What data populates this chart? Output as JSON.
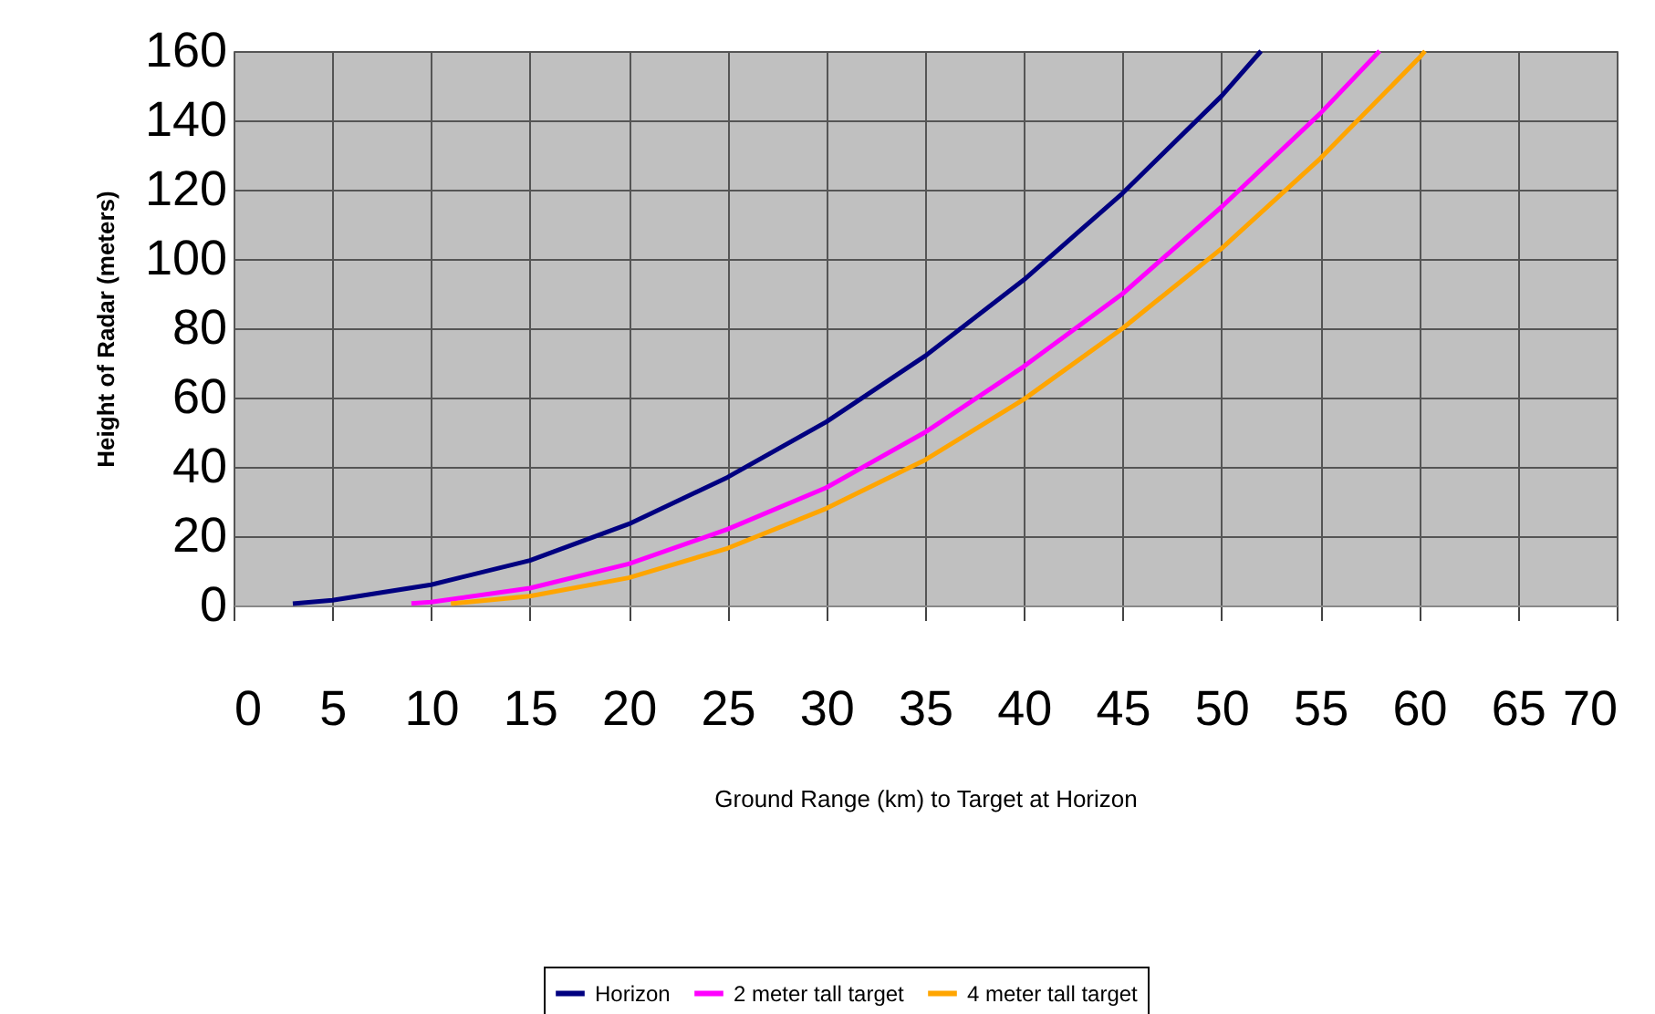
{
  "chart_data": {
    "type": "line",
    "xlabel": "Ground Range (km) to Target at Horizon",
    "ylabel": "Height of Radar (meters)",
    "xlim": [
      0,
      70
    ],
    "xticks": [
      0,
      5,
      10,
      15,
      20,
      25,
      30,
      35,
      40,
      45,
      50,
      55,
      60,
      65,
      70
    ],
    "ylim": [
      0,
      160
    ],
    "yticks": [
      0,
      20,
      40,
      60,
      80,
      100,
      120,
      140,
      160
    ],
    "series": [
      {
        "name": "Horizon",
        "color": "#000080",
        "x": [
          3,
          5,
          10,
          15,
          20,
          25,
          30,
          35,
          40,
          45,
          50,
          52
        ],
        "values": [
          0.5,
          1.5,
          6,
          13,
          23.5,
          37,
          53,
          72,
          94,
          119,
          147,
          160
        ]
      },
      {
        "name": "2 meter tall target",
        "color": "#ff00ff",
        "x": [
          9,
          10,
          15,
          20,
          25,
          30,
          35,
          40,
          45,
          50,
          55,
          58
        ],
        "values": [
          0.6,
          1,
          5,
          12,
          22,
          34,
          50,
          69,
          90,
          115,
          142,
          160
        ]
      },
      {
        "name": "4 meter tall target",
        "color": "#ffa500",
        "x": [
          11,
          15,
          20,
          25,
          30,
          35,
          40,
          45,
          50,
          55,
          60,
          60.3
        ],
        "values": [
          0.5,
          2.7,
          8,
          16.5,
          28,
          42,
          59.5,
          80,
          103,
          129,
          158,
          160
        ]
      }
    ],
    "grid": true,
    "legend": "bottom",
    "marker": "none",
    "line_style": "solid"
  }
}
